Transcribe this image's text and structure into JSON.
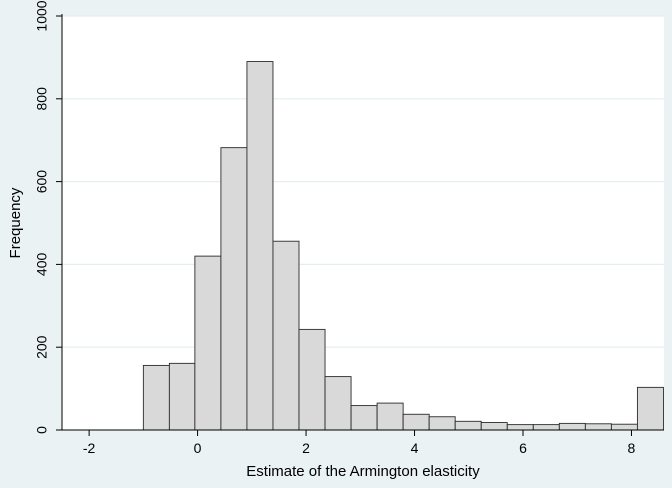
{
  "chart_data": {
    "type": "bar",
    "title": "",
    "xlabel": "Estimate of the Armington elasticity",
    "ylabel": "Frequency",
    "xlim": [
      -2.5,
      8.6
    ],
    "ylim": [
      0,
      1000
    ],
    "xticks": [
      -2,
      0,
      2,
      4,
      6,
      8
    ],
    "yticks": [
      0,
      200,
      400,
      600,
      800,
      1000
    ],
    "grid": true,
    "legend": "none",
    "colors": {
      "background": "#eaf2f3",
      "plot_area": "#ffffff",
      "bar_fill": "#d9d9d9",
      "bar_stroke": "#2b2b2b",
      "grid": "#e4eef0"
    },
    "bins": [
      {
        "x0": -1.0,
        "x1": -0.52,
        "value": 156
      },
      {
        "x0": -0.52,
        "x1": -0.05,
        "value": 161
      },
      {
        "x0": -0.05,
        "x1": 0.43,
        "value": 420
      },
      {
        "x0": 0.43,
        "x1": 0.91,
        "value": 682
      },
      {
        "x0": 0.91,
        "x1": 1.39,
        "value": 890
      },
      {
        "x0": 1.39,
        "x1": 1.87,
        "value": 456
      },
      {
        "x0": 1.87,
        "x1": 2.35,
        "value": 243
      },
      {
        "x0": 2.35,
        "x1": 2.83,
        "value": 129
      },
      {
        "x0": 2.83,
        "x1": 3.31,
        "value": 59
      },
      {
        "x0": 3.31,
        "x1": 3.79,
        "value": 65
      },
      {
        "x0": 3.79,
        "x1": 4.27,
        "value": 38
      },
      {
        "x0": 4.27,
        "x1": 4.75,
        "value": 32
      },
      {
        "x0": 4.75,
        "x1": 5.23,
        "value": 21
      },
      {
        "x0": 5.23,
        "x1": 5.71,
        "value": 18
      },
      {
        "x0": 5.71,
        "x1": 6.19,
        "value": 13
      },
      {
        "x0": 6.19,
        "x1": 6.67,
        "value": 13
      },
      {
        "x0": 6.67,
        "x1": 7.15,
        "value": 16
      },
      {
        "x0": 7.15,
        "x1": 7.63,
        "value": 15
      },
      {
        "x0": 7.63,
        "x1": 8.11,
        "value": 14
      },
      {
        "x0": 8.11,
        "x1": 8.59,
        "value": 103
      }
    ]
  }
}
